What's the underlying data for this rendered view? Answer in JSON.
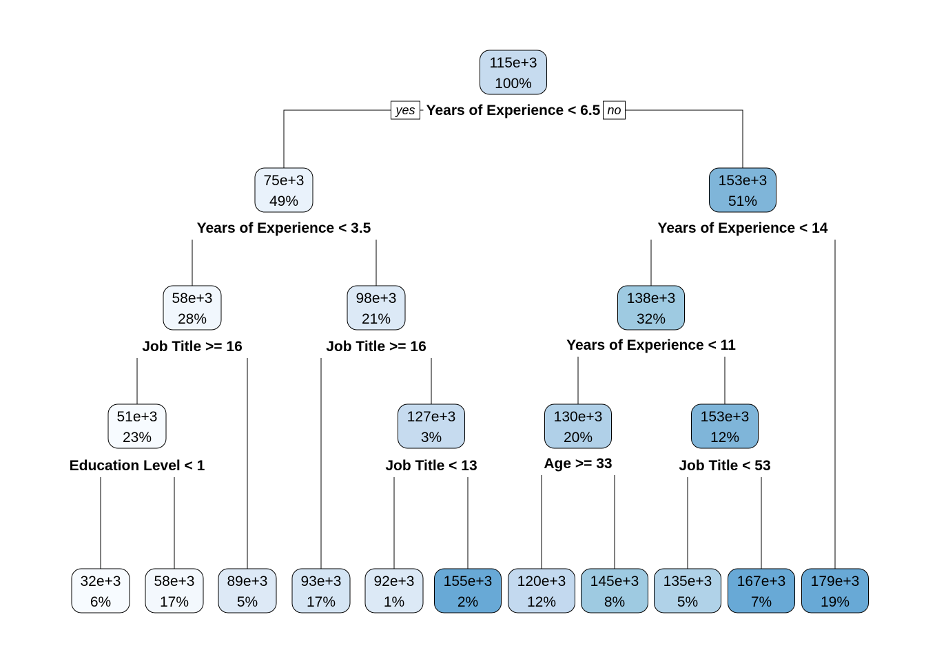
{
  "branch_labels": {
    "yes": "yes",
    "no": "no"
  },
  "nodes": [
    {
      "id": "n1",
      "value": "115e+3",
      "pct": "100%",
      "color": "#c6dbef",
      "split": "Years of Experience < 6.5"
    },
    {
      "id": "n2",
      "value": "75e+3",
      "pct": "49%",
      "color": "#e9f2fb",
      "split": "Years of Experience < 3.5"
    },
    {
      "id": "n3",
      "value": "153e+3",
      "pct": "51%",
      "color": "#7fb5d9",
      "split": "Years of Experience < 14"
    },
    {
      "id": "n4",
      "value": "58e+3",
      "pct": "28%",
      "color": "#f1f7fd",
      "split": "Job Title >= 16"
    },
    {
      "id": "n5",
      "value": "98e+3",
      "pct": "21%",
      "color": "#dce9f6",
      "split": "Job Title >= 16"
    },
    {
      "id": "n6",
      "value": "138e+3",
      "pct": "32%",
      "color": "#9ecae1",
      "split": "Years of Experience < 11"
    },
    {
      "id": "n7",
      "value": "51e+3",
      "pct": "23%",
      "color": "#f7fbff",
      "split": "Education Level < 1"
    },
    {
      "id": "n8",
      "value": "127e+3",
      "pct": "3%",
      "color": "#c6dbef",
      "split": "Job Title < 13"
    },
    {
      "id": "n9",
      "value": "130e+3",
      "pct": "20%",
      "color": "#b0d0e8",
      "split": "Age >= 33"
    },
    {
      "id": "n10",
      "value": "153e+3",
      "pct": "12%",
      "color": "#7fb5d9",
      "split": "Job Title < 53"
    },
    {
      "id": "l1",
      "value": "32e+3",
      "pct": "6%",
      "color": "#f7fbff"
    },
    {
      "id": "l2",
      "value": "58e+3",
      "pct": "17%",
      "color": "#f3f8fd"
    },
    {
      "id": "l3",
      "value": "89e+3",
      "pct": "5%",
      "color": "#dde9f6"
    },
    {
      "id": "l4",
      "value": "93e+3",
      "pct": "17%",
      "color": "#d5e5f4"
    },
    {
      "id": "l5",
      "value": "92e+3",
      "pct": "1%",
      "color": "#dce9f6"
    },
    {
      "id": "l6",
      "value": "155e+3",
      "pct": "2%",
      "color": "#68a9d6"
    },
    {
      "id": "l7",
      "value": "120e+3",
      "pct": "12%",
      "color": "#c3d9ef"
    },
    {
      "id": "l8",
      "value": "145e+3",
      "pct": "8%",
      "color": "#9ecae1"
    },
    {
      "id": "l9",
      "value": "135e+3",
      "pct": "5%",
      "color": "#b0d2e8"
    },
    {
      "id": "l10",
      "value": "167e+3",
      "pct": "7%",
      "color": "#68a9d6"
    },
    {
      "id": "l11",
      "value": "179e+3",
      "pct": "19%",
      "color": "#68a9d6"
    }
  ]
}
